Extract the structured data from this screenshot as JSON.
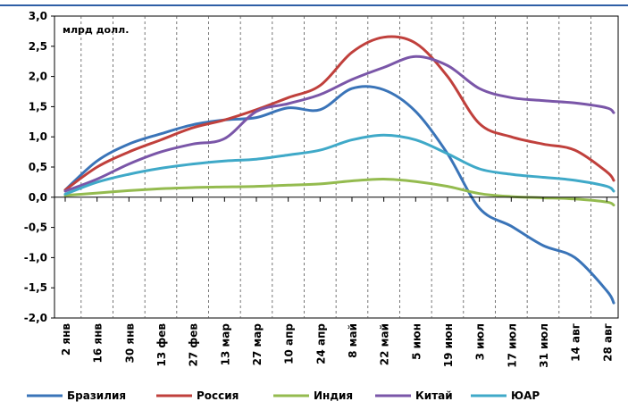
{
  "chart_data": {
    "type": "line",
    "unit": "млрд долл.",
    "ylim": [
      -2.0,
      3.0
    ],
    "yticks": [
      "3,0",
      "2,5",
      "2,0",
      "1,5",
      "1,0",
      "0,5",
      "0,0",
      "-0,5",
      "-1,0",
      "-1,5",
      "-2,0"
    ],
    "grid": "vertical-dashed",
    "legend_position": "bottom",
    "categories": [
      "2 янв",
      "16 янв",
      "30 янв",
      "13 фев",
      "27 фев",
      "13 мар",
      "27 мар",
      "10 апр",
      "24 апр",
      "8 май",
      "22 май",
      "5 июн",
      "19 июн",
      "3 июл",
      "17 июл",
      "31 июл",
      "14 авг",
      "28 авг"
    ],
    "series": [
      {
        "name": "Бразилия",
        "color": "#3a74b8",
        "values": [
          0.12,
          0.6,
          0.88,
          1.05,
          1.2,
          1.28,
          1.32,
          1.48,
          1.45,
          1.8,
          1.78,
          1.42,
          0.72,
          -0.18,
          -0.48,
          -0.8,
          -1.0,
          -1.55
        ],
        "last_value": -1.75
      },
      {
        "name": "Россия",
        "color": "#c0403c",
        "values": [
          0.12,
          0.5,
          0.75,
          0.95,
          1.15,
          1.28,
          1.45,
          1.65,
          1.85,
          2.4,
          2.65,
          2.55,
          2.0,
          1.22,
          1.0,
          0.88,
          0.78,
          0.42
        ],
        "last_value": 0.28
      },
      {
        "name": "Индия",
        "color": "#94bb4f",
        "values": [
          0.03,
          0.07,
          0.11,
          0.14,
          0.16,
          0.17,
          0.18,
          0.2,
          0.22,
          0.27,
          0.3,
          0.26,
          0.18,
          0.06,
          0.01,
          -0.01,
          -0.03,
          -0.08
        ],
        "last_value": -0.13
      },
      {
        "name": "Китай",
        "color": "#7a56a8",
        "values": [
          0.1,
          0.3,
          0.55,
          0.75,
          0.88,
          0.97,
          1.42,
          1.55,
          1.7,
          1.95,
          2.15,
          2.33,
          2.18,
          1.8,
          1.65,
          1.6,
          1.56,
          1.48
        ],
        "last_value": 1.4
      },
      {
        "name": "ЮАР",
        "color": "#3fa9c8",
        "values": [
          0.05,
          0.25,
          0.38,
          0.48,
          0.55,
          0.6,
          0.63,
          0.7,
          0.78,
          0.95,
          1.03,
          0.95,
          0.72,
          0.47,
          0.38,
          0.33,
          0.28,
          0.18
        ],
        "last_value": 0.1
      }
    ]
  }
}
